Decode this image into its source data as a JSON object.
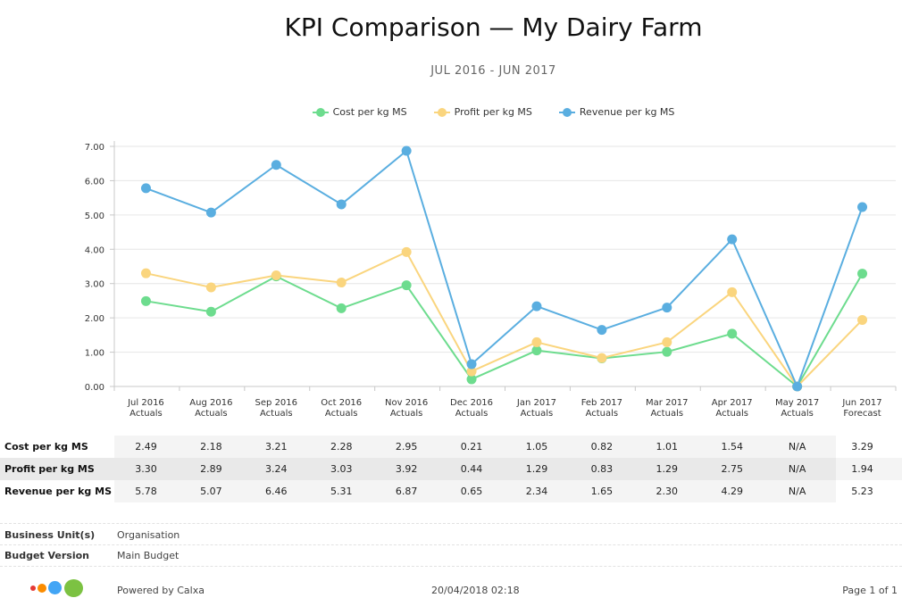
{
  "title": "KPI Comparison — My Dairy Farm",
  "subtitle": "JUL 2016 - JUN 2017",
  "chart_data": {
    "type": "line",
    "categories": [
      [
        "Jul 2016",
        "Actuals"
      ],
      [
        "Aug 2016",
        "Actuals"
      ],
      [
        "Sep 2016",
        "Actuals"
      ],
      [
        "Oct 2016",
        "Actuals"
      ],
      [
        "Nov 2016",
        "Actuals"
      ],
      [
        "Dec 2016",
        "Actuals"
      ],
      [
        "Jan 2017",
        "Actuals"
      ],
      [
        "Feb 2017",
        "Actuals"
      ],
      [
        "Mar 2017",
        "Actuals"
      ],
      [
        "Apr 2017",
        "Actuals"
      ],
      [
        "May 2017",
        "Actuals"
      ],
      [
        "Jun 2017",
        "Forecast"
      ]
    ],
    "ylim": [
      0,
      7.0
    ],
    "yticks": [
      "0.00",
      "1.00",
      "2.00",
      "3.00",
      "4.00",
      "5.00",
      "6.00",
      "7.00"
    ],
    "grid": true,
    "legend_position": "top",
    "series": [
      {
        "name": "Cost per kg MS",
        "color": "#6ddc8e",
        "values": [
          2.49,
          2.18,
          3.21,
          2.28,
          2.95,
          0.21,
          1.05,
          0.82,
          1.01,
          1.54,
          0,
          3.29
        ]
      },
      {
        "name": "Profit per kg MS",
        "color": "#fad57e",
        "values": [
          3.3,
          2.89,
          3.24,
          3.03,
          3.92,
          0.44,
          1.29,
          0.83,
          1.29,
          2.75,
          0,
          1.94
        ]
      },
      {
        "name": "Revenue per kg MS",
        "color": "#5aaee0",
        "values": [
          5.78,
          5.07,
          6.46,
          5.31,
          6.87,
          0.65,
          2.34,
          1.65,
          2.3,
          4.29,
          0,
          5.23
        ]
      }
    ]
  },
  "table": {
    "rows": [
      {
        "label": "Cost per kg MS",
        "cells": [
          "2.49",
          "2.18",
          "3.21",
          "2.28",
          "2.95",
          "0.21",
          "1.05",
          "0.82",
          "1.01",
          "1.54",
          "N/A",
          "3.29"
        ]
      },
      {
        "label": "Profit per kg MS",
        "cells": [
          "3.30",
          "2.89",
          "3.24",
          "3.03",
          "3.92",
          "0.44",
          "1.29",
          "0.83",
          "1.29",
          "2.75",
          "N/A",
          "1.94"
        ]
      },
      {
        "label": "Revenue per kg MS",
        "cells": [
          "5.78",
          "5.07",
          "6.46",
          "5.31",
          "6.87",
          "0.65",
          "2.34",
          "1.65",
          "2.30",
          "4.29",
          "N/A",
          "5.23"
        ]
      }
    ]
  },
  "info": {
    "business_unit_label": "Business Unit(s)",
    "business_unit_value": "Organisation",
    "budget_version_label": "Budget Version",
    "budget_version_value": "Main Budget"
  },
  "footer": {
    "powered_by": "Powered by Calxa",
    "date": "20/04/2018 02:18",
    "page": "Page 1 of 1"
  },
  "logo_colors": [
    "#e53935",
    "#fb8c00",
    "#42a5f5",
    "#7cc242"
  ]
}
